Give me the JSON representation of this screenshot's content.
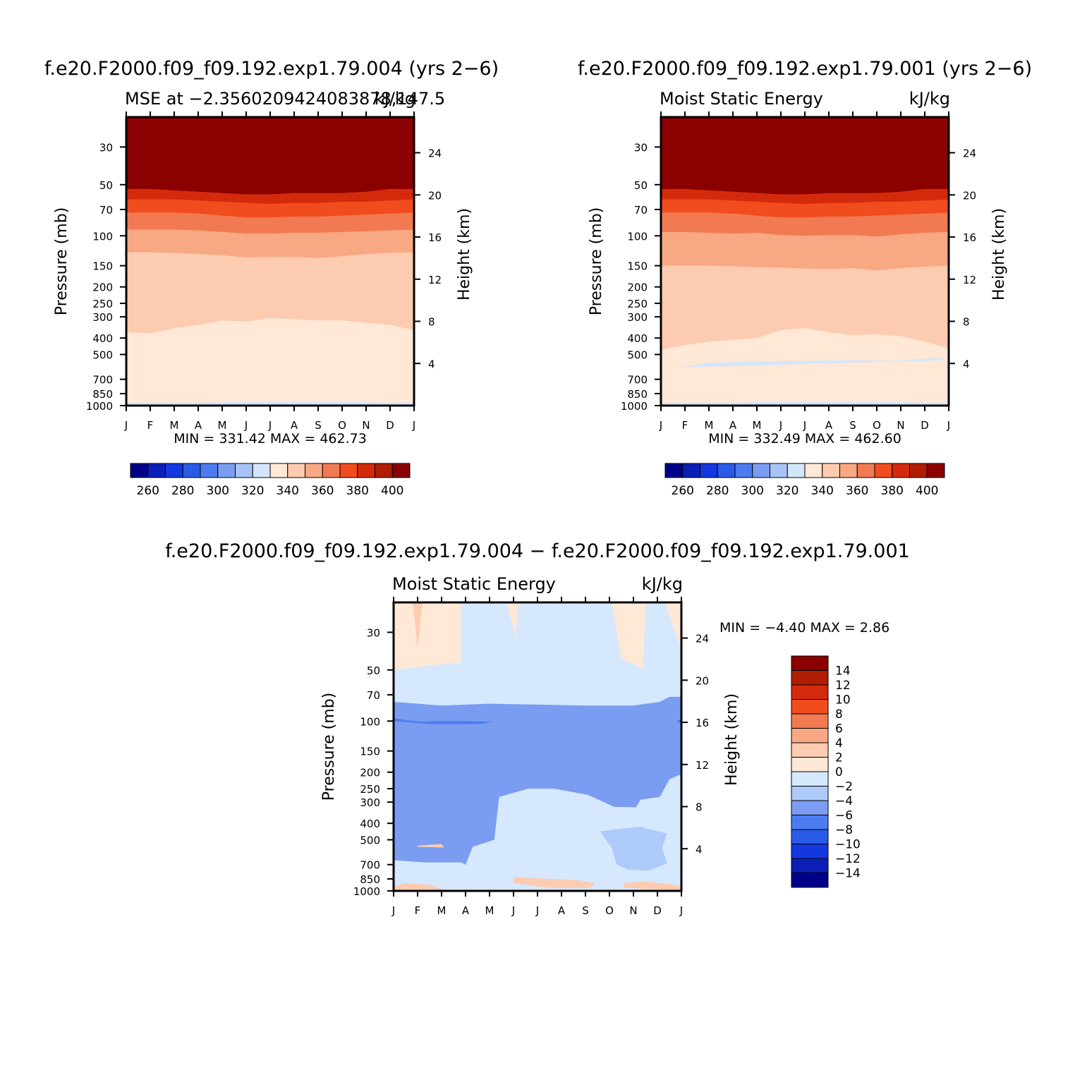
{
  "colors": {
    "full_palette": [
      "#00008b",
      "#0a1fb8",
      "#1438e0",
      "#2a5be8",
      "#4d7cf0",
      "#7a9df2",
      "#a9c3fa",
      "#d4e6fc",
      "#ffe8d6",
      "#fccbb0",
      "#f8a882",
      "#f27a52",
      "#f14c1e",
      "#d42a0c",
      "#b01d03",
      "#8b0000"
    ],
    "diff_palette": [
      "#00008b",
      "#0a1fb8",
      "#1438e0",
      "#2a5be8",
      "#4d7cf0",
      "#7a9df2",
      "#aecaf9",
      "#d6e8fd",
      "#ffe8d6",
      "#fccbb0",
      "#f8a882",
      "#f27a52",
      "#f14c1e",
      "#d42a0c",
      "#b01d03",
      "#8b0000"
    ]
  },
  "chart_data": [
    {
      "id": "panel-1",
      "type": "contour",
      "title": "f.e20.F2000.f09_f09.192.exp1.79.004 (yrs 2−6)",
      "subtitle_left": "MSE at −2.3560209424083878,147.5",
      "subtitle_right": "kJ/kg",
      "xlabel": "",
      "ylabel": "Pressure (mb)",
      "ylabel_right": "Height (km)",
      "x_ticks": [
        "J",
        "F",
        "M",
        "A",
        "M",
        "J",
        "J",
        "A",
        "S",
        "O",
        "N",
        "D",
        "J"
      ],
      "y_ticks": [
        30,
        50,
        70,
        100,
        150,
        200,
        250,
        300,
        400,
        500,
        700,
        850,
        1000
      ],
      "y_right_ticks": [
        24,
        20,
        16,
        12,
        8,
        4
      ],
      "ylim_mb": [
        1000,
        20
      ],
      "stats_text": "MIN = 331.42 MAX = 462.73",
      "min": 331.42,
      "max": 462.73,
      "levels": [
        250,
        260,
        270,
        280,
        290,
        300,
        310,
        320,
        330,
        340,
        350,
        360,
        370,
        380,
        390,
        400,
        410
      ],
      "colorbar_labels": [
        "260",
        "280",
        "300",
        "320",
        "340",
        "360",
        "380",
        "400"
      ],
      "months": [
        0,
        1,
        2,
        3,
        4,
        5,
        6,
        7,
        8,
        9,
        10,
        11,
        12
      ],
      "boundaries_mb": [
        {
          "level": 390,
          "mb": [
            53,
            53,
            54,
            55,
            56,
            57,
            57,
            56,
            56,
            56,
            55,
            53,
            53
          ]
        },
        {
          "level": 380,
          "mb": [
            61,
            61,
            61,
            62,
            63,
            64,
            65,
            64,
            64,
            63,
            63,
            62,
            61
          ]
        },
        {
          "level": 370,
          "mb": [
            73,
            73,
            73,
            74,
            76,
            78,
            78,
            77,
            77,
            76,
            75,
            74,
            73
          ]
        },
        {
          "level": 360,
          "mb": [
            92,
            92,
            92,
            93,
            95,
            97,
            97,
            96,
            96,
            95,
            94,
            93,
            92
          ]
        },
        {
          "level": 350,
          "mb": [
            125,
            125,
            126,
            128,
            130,
            134,
            133,
            133,
            135,
            132,
            128,
            126,
            125
          ]
        },
        {
          "level": 340,
          "mb": [
            370,
            375,
            350,
            335,
            315,
            320,
            305,
            310,
            315,
            315,
            325,
            335,
            360
          ]
        },
        {
          "level": 330,
          "mb": [
            960,
            960,
            960,
            960,
            955,
            955,
            955,
            955,
            955,
            955,
            955,
            960,
            960
          ]
        }
      ],
      "blobs": [
        {
          "level": 340,
          "months": [
            0.6,
            1.1,
            2.0
          ],
          "mb": [
            515,
            490,
            520
          ]
        }
      ]
    },
    {
      "id": "panel-2",
      "type": "contour",
      "title": "f.e20.F2000.f09_f09.192.exp1.79.001 (yrs 2−6)",
      "subtitle_left": "Moist Static Energy",
      "subtitle_right": "kJ/kg",
      "xlabel": "",
      "ylabel": "Pressure (mb)",
      "ylabel_right": "Height (km)",
      "x_ticks": [
        "J",
        "F",
        "M",
        "A",
        "M",
        "J",
        "J",
        "A",
        "S",
        "O",
        "N",
        "D",
        "J"
      ],
      "y_ticks": [
        30,
        50,
        70,
        100,
        150,
        200,
        250,
        300,
        400,
        500,
        700,
        850,
        1000
      ],
      "y_right_ticks": [
        24,
        20,
        16,
        12,
        8,
        4
      ],
      "ylim_mb": [
        1000,
        20
      ],
      "stats_text": "MIN = 332.49 MAX = 462.60",
      "min": 332.49,
      "max": 462.6,
      "levels": [
        250,
        260,
        270,
        280,
        290,
        300,
        310,
        320,
        330,
        340,
        350,
        360,
        370,
        380,
        390,
        400,
        410
      ],
      "colorbar_labels": [
        "260",
        "280",
        "300",
        "320",
        "340",
        "360",
        "380",
        "400"
      ],
      "months": [
        0,
        1,
        2,
        3,
        4,
        5,
        6,
        7,
        8,
        9,
        10,
        11,
        12
      ],
      "boundaries_mb": [
        {
          "level": 390,
          "mb": [
            53,
            53,
            54,
            55,
            56,
            57,
            57,
            56,
            56,
            56,
            55,
            53,
            53
          ]
        },
        {
          "level": 380,
          "mb": [
            61,
            61,
            61,
            62,
            63,
            64,
            65,
            64,
            64,
            63,
            63,
            62,
            61
          ]
        },
        {
          "level": 370,
          "mb": [
            73,
            73,
            73,
            74,
            76,
            78,
            78,
            77,
            77,
            76,
            75,
            74,
            73
          ]
        },
        {
          "level": 360,
          "mb": [
            95,
            95,
            96,
            97,
            96,
            99,
            100,
            99,
            99,
            101,
            98,
            96,
            95
          ]
        },
        {
          "level": 350,
          "mb": [
            150,
            150,
            150,
            151,
            153,
            154,
            156,
            157,
            155,
            160,
            155,
            152,
            150
          ]
        },
        {
          "level": 340,
          "mb": [
            470,
            440,
            420,
            410,
            400,
            360,
            350,
            370,
            385,
            380,
            390,
            420,
            460
          ]
        },
        {
          "level": 330,
          "mb": [
            960,
            960,
            960,
            960,
            955,
            955,
            955,
            955,
            955,
            955,
            955,
            960,
            960
          ]
        }
      ],
      "blobs": [
        {
          "level": 330,
          "months": [
            0,
            0.7,
            2.0,
            4.0,
            6.0,
            8.0,
            10.0,
            11.4,
            12
          ],
          "mb": [
            600,
            600,
            560,
            550,
            545,
            540,
            545,
            520,
            540
          ]
        },
        {
          "level": 340,
          "months": [
            2.8,
            3.2,
            4.1
          ],
          "mb": [
            520,
            505,
            525
          ]
        }
      ]
    },
    {
      "id": "panel-3",
      "type": "contour",
      "title": "f.e20.F2000.f09_f09.192.exp1.79.004 − f.e20.F2000.f09_f09.192.exp1.79.001",
      "subtitle_left": "Moist Static Energy",
      "subtitle_right": "kJ/kg",
      "xlabel": "",
      "ylabel": "Pressure (mb)",
      "ylabel_right": "Height (km)",
      "x_ticks": [
        "J",
        "F",
        "M",
        "A",
        "M",
        "J",
        "J",
        "A",
        "S",
        "O",
        "N",
        "D",
        "J"
      ],
      "y_ticks": [
        30,
        50,
        70,
        100,
        150,
        200,
        250,
        300,
        400,
        500,
        700,
        850,
        1000
      ],
      "y_right_ticks": [
        24,
        20,
        16,
        12,
        8,
        4
      ],
      "ylim_mb": [
        1000,
        20
      ],
      "stats_text": "MIN =   −4.40 MAX =     2.86",
      "min": -4.4,
      "max": 2.86,
      "levels": [
        -16,
        -14,
        -12,
        -10,
        -8,
        -6,
        -4,
        -2,
        0,
        2,
        4,
        6,
        8,
        10,
        12,
        14,
        16
      ],
      "colorbar_labels": [
        "14",
        "12",
        "10",
        "8",
        "6",
        "4",
        "2",
        "0",
        "−2",
        "−4",
        "−6",
        "−8",
        "−10",
        "−12",
        "−14"
      ],
      "blobs": [
        {
          "level": 0,
          "months": [
            0,
            0,
            1.1,
            2.2,
            2.8,
            2.8,
            0
          ],
          "mb": [
            55,
            20,
            20,
            20,
            20,
            45,
            50
          ]
        },
        {
          "level": 2,
          "months": [
            0.8,
            1.0,
            1.2
          ],
          "mb": [
            20,
            37,
            20
          ]
        },
        {
          "level": 0,
          "months": [
            4.7,
            5.1,
            5.2
          ],
          "mb": [
            20,
            32,
            20
          ]
        },
        {
          "level": 0,
          "months": [
            9.1,
            9.5,
            10.0,
            10.4,
            10.5,
            11.3,
            12,
            12
          ],
          "mb": [
            20,
            43,
            46,
            50,
            20,
            20,
            38,
            20
          ]
        },
        {
          "level": -4,
          "months": [
            0,
            2.0,
            4.0,
            6.0,
            8.0,
            10.0,
            11.1,
            11.5,
            12,
            12,
            11.5,
            11.1,
            10.3,
            10.1,
            9.2,
            8.1,
            6.7,
            5.6,
            4.4,
            4.2,
            3.3,
            3.0,
            2.8,
            1.3,
            0,
            0
          ],
          "mb": [
            77,
            81,
            79,
            80,
            81,
            81,
            77,
            72,
            72,
            205,
            220,
            280,
            290,
            322,
            320,
            272,
            250,
            250,
            280,
            500,
            550,
            700,
            680,
            680,
            660,
            77
          ]
        },
        {
          "level": -6,
          "months": [
            0,
            0.6,
            1.2,
            1.7,
            3.0,
            4.1,
            3.6,
            2.5,
            1.5,
            0
          ],
          "mb": [
            96,
            99,
            101,
            100,
            100,
            101,
            104,
            104,
            104,
            100
          ]
        },
        {
          "level": -6,
          "months": [
            11.8,
            12,
            12,
            11.8
          ],
          "mb": [
            100,
            97,
            104,
            100
          ]
        },
        {
          "level": -2,
          "months": [
            8.6,
            9.6,
            10.3,
            11.4,
            11.2,
            11.4,
            10.6,
            9.8,
            9.3,
            9.1,
            8.6
          ],
          "mb": [
            445,
            430,
            420,
            460,
            560,
            690,
            760,
            750,
            700,
            560,
            445
          ]
        },
        {
          "level": 2,
          "months": [
            1.0,
            2.0,
            2.1,
            1.0
          ],
          "mb": [
            540,
            530,
            555,
            550
          ]
        },
        {
          "level": 2,
          "months": [
            0,
            0,
            0.5,
            1.5,
            2.2
          ],
          "mb": [
            1000,
            940,
            900,
            920,
            1000
          ]
        },
        {
          "level": 2,
          "months": [
            5.0,
            6.5,
            7.5,
            8.4,
            8.2,
            6.5,
            5.0
          ],
          "mb": [
            830,
            850,
            860,
            900,
            960,
            960,
            900
          ]
        },
        {
          "level": 2,
          "months": [
            9.6,
            10.4,
            11.5,
            12,
            12,
            9.6
          ],
          "mb": [
            900,
            880,
            910,
            940,
            990,
            960
          ]
        }
      ]
    }
  ]
}
